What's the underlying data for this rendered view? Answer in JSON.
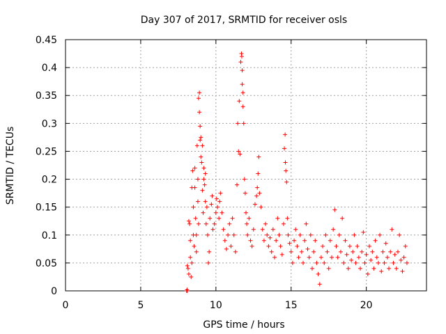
{
  "chart_data": {
    "type": "scatter",
    "title": "Day 307 of 2017, SRMTID for receiver osls",
    "xlabel": "GPS time / hours",
    "ylabel": "SRMTID / TECUs",
    "xlim": [
      0,
      24
    ],
    "ylim": [
      0,
      0.45
    ],
    "xticks": [
      0,
      5,
      10,
      15,
      20
    ],
    "xtick_labels": [
      "0",
      "5",
      "10",
      "15",
      "20"
    ],
    "yticks": [
      0,
      0.05,
      0.1,
      0.15,
      0.2,
      0.25,
      0.3,
      0.35,
      0.4,
      0.45
    ],
    "ytick_labels": [
      "0",
      "0.05",
      "0.1",
      "0.15",
      "0.2",
      "0.25",
      "0.3",
      "0.35",
      "0.4",
      "0.45"
    ],
    "grid": true,
    "marker": "+",
    "color": "#ff0000",
    "series": [
      {
        "points": [
          [
            8.05,
            0.0
          ],
          [
            8.1,
            0.0
          ],
          [
            8.08,
            0.002
          ],
          [
            8.1,
            0.045
          ],
          [
            8.15,
            0.04
          ],
          [
            8.2,
            0.03
          ],
          [
            8.2,
            0.125
          ],
          [
            8.25,
            0.12
          ],
          [
            8.3,
            0.09
          ],
          [
            8.3,
            0.06
          ],
          [
            8.35,
            0.025
          ],
          [
            8.4,
            0.05
          ],
          [
            8.4,
            0.185
          ],
          [
            8.45,
            0.215
          ],
          [
            8.5,
            0.15
          ],
          [
            8.5,
            0.1
          ],
          [
            8.55,
            0.08
          ],
          [
            8.6,
            0.22
          ],
          [
            8.6,
            0.185
          ],
          [
            8.65,
            0.13
          ],
          [
            8.7,
            0.1
          ],
          [
            8.7,
            0.07
          ],
          [
            8.75,
            0.26
          ],
          [
            8.8,
            0.2
          ],
          [
            8.8,
            0.16
          ],
          [
            8.85,
            0.12
          ],
          [
            8.85,
            0.345
          ],
          [
            8.9,
            0.355
          ],
          [
            8.9,
            0.32
          ],
          [
            8.95,
            0.295
          ],
          [
            8.95,
            0.27
          ],
          [
            9.0,
            0.275
          ],
          [
            9.0,
            0.24
          ],
          [
            9.05,
            0.23
          ],
          [
            9.1,
            0.26
          ],
          [
            9.1,
            0.18
          ],
          [
            9.15,
            0.14
          ],
          [
            9.2,
            0.2
          ],
          [
            9.2,
            0.22
          ],
          [
            9.25,
            0.19
          ],
          [
            9.3,
            0.21
          ],
          [
            9.3,
            0.16
          ],
          [
            9.35,
            0.12
          ],
          [
            9.4,
            0.15
          ],
          [
            9.45,
            0.1
          ],
          [
            9.5,
            0.05
          ],
          [
            9.55,
            0.07
          ],
          [
            9.6,
            0.13
          ],
          [
            9.7,
            0.155
          ],
          [
            9.75,
            0.17
          ],
          [
            9.8,
            0.11
          ],
          [
            9.9,
            0.12
          ],
          [
            10.0,
            0.14
          ],
          [
            10.05,
            0.165
          ],
          [
            10.1,
            0.15
          ],
          [
            10.2,
            0.13
          ],
          [
            10.25,
            0.16
          ],
          [
            10.3,
            0.175
          ],
          [
            10.4,
            0.14
          ],
          [
            10.5,
            0.11
          ],
          [
            10.6,
            0.09
          ],
          [
            10.7,
            0.075
          ],
          [
            10.8,
            0.1
          ],
          [
            10.9,
            0.12
          ],
          [
            11.0,
            0.08
          ],
          [
            11.1,
            0.13
          ],
          [
            11.2,
            0.1
          ],
          [
            11.3,
            0.07
          ],
          [
            11.4,
            0.19
          ],
          [
            11.45,
            0.3
          ],
          [
            11.5,
            0.25
          ],
          [
            11.55,
            0.34
          ],
          [
            11.6,
            0.245
          ],
          [
            11.65,
            0.41
          ],
          [
            11.7,
            0.425
          ],
          [
            11.72,
            0.42
          ],
          [
            11.75,
            0.395
          ],
          [
            11.75,
            0.37
          ],
          [
            11.8,
            0.355
          ],
          [
            11.8,
            0.33
          ],
          [
            11.85,
            0.3
          ],
          [
            11.9,
            0.2
          ],
          [
            11.95,
            0.175
          ],
          [
            12.0,
            0.14
          ],
          [
            12.05,
            0.12
          ],
          [
            12.1,
            0.1
          ],
          [
            12.2,
            0.13
          ],
          [
            12.3,
            0.09
          ],
          [
            12.4,
            0.08
          ],
          [
            12.5,
            0.11
          ],
          [
            12.6,
            0.155
          ],
          [
            12.7,
            0.17
          ],
          [
            12.75,
            0.185
          ],
          [
            12.8,
            0.21
          ],
          [
            12.85,
            0.24
          ],
          [
            12.9,
            0.175
          ],
          [
            13.0,
            0.15
          ],
          [
            13.1,
            0.11
          ],
          [
            13.2,
            0.09
          ],
          [
            13.3,
            0.12
          ],
          [
            13.4,
            0.1
          ],
          [
            13.5,
            0.08
          ],
          [
            13.6,
            0.095
          ],
          [
            13.7,
            0.07
          ],
          [
            13.8,
            0.11
          ],
          [
            13.9,
            0.06
          ],
          [
            14.0,
            0.09
          ],
          [
            14.1,
            0.13
          ],
          [
            14.2,
            0.1
          ],
          [
            14.3,
            0.08
          ],
          [
            14.4,
            0.065
          ],
          [
            14.5,
            0.12
          ],
          [
            14.55,
            0.255
          ],
          [
            14.6,
            0.28
          ],
          [
            14.62,
            0.23
          ],
          [
            14.65,
            0.215
          ],
          [
            14.7,
            0.195
          ],
          [
            14.75,
            0.13
          ],
          [
            14.8,
            0.1
          ],
          [
            14.9,
            0.085
          ],
          [
            15.0,
            0.07
          ],
          [
            15.1,
            0.05
          ],
          [
            15.2,
            0.09
          ],
          [
            15.3,
            0.11
          ],
          [
            15.4,
            0.08
          ],
          [
            15.5,
            0.06
          ],
          [
            15.6,
            0.1
          ],
          [
            15.7,
            0.07
          ],
          [
            15.8,
            0.05
          ],
          [
            15.9,
            0.09
          ],
          [
            16.0,
            0.12
          ],
          [
            16.1,
            0.075
          ],
          [
            16.2,
            0.06
          ],
          [
            16.3,
            0.1
          ],
          [
            16.4,
            0.04
          ],
          [
            16.5,
            0.07
          ],
          [
            16.6,
            0.09
          ],
          [
            16.7,
            0.05
          ],
          [
            16.8,
            0.03
          ],
          [
            16.9,
            0.012
          ],
          [
            17.0,
            0.06
          ],
          [
            17.1,
            0.08
          ],
          [
            17.2,
            0.05
          ],
          [
            17.3,
            0.1
          ],
          [
            17.4,
            0.07
          ],
          [
            17.5,
            0.04
          ],
          [
            17.6,
            0.09
          ],
          [
            17.7,
            0.06
          ],
          [
            17.8,
            0.11
          ],
          [
            17.9,
            0.145
          ],
          [
            18.0,
            0.08
          ],
          [
            18.1,
            0.06
          ],
          [
            18.2,
            0.1
          ],
          [
            18.3,
            0.07
          ],
          [
            18.4,
            0.13
          ],
          [
            18.5,
            0.05
          ],
          [
            18.6,
            0.09
          ],
          [
            18.7,
            0.065
          ],
          [
            18.8,
            0.04
          ],
          [
            18.9,
            0.08
          ],
          [
            19.0,
            0.055
          ],
          [
            19.1,
            0.07
          ],
          [
            19.2,
            0.1
          ],
          [
            19.3,
            0.05
          ],
          [
            19.4,
            0.08
          ],
          [
            19.5,
            0.06
          ],
          [
            19.6,
            0.04
          ],
          [
            19.7,
            0.07
          ],
          [
            19.8,
            0.105
          ],
          [
            19.9,
            0.05
          ],
          [
            20.0,
            0.065
          ],
          [
            20.1,
            0.03
          ],
          [
            20.2,
            0.08
          ],
          [
            20.3,
            0.055
          ],
          [
            20.4,
            0.07
          ],
          [
            20.5,
            0.04
          ],
          [
            20.6,
            0.09
          ],
          [
            20.7,
            0.06
          ],
          [
            20.8,
            0.05
          ],
          [
            20.9,
            0.1
          ],
          [
            21.0,
            0.035
          ],
          [
            21.1,
            0.07
          ],
          [
            21.2,
            0.05
          ],
          [
            21.3,
            0.085
          ],
          [
            21.4,
            0.06
          ],
          [
            21.5,
            0.04
          ],
          [
            21.6,
            0.07
          ],
          [
            21.7,
            0.11
          ],
          [
            21.8,
            0.05
          ],
          [
            21.9,
            0.065
          ],
          [
            22.0,
            0.04
          ],
          [
            22.1,
            0.07
          ],
          [
            22.2,
            0.1
          ],
          [
            22.3,
            0.055
          ],
          [
            22.4,
            0.035
          ],
          [
            22.5,
            0.06
          ],
          [
            22.6,
            0.08
          ],
          [
            22.7,
            0.05
          ]
        ]
      }
    ]
  }
}
